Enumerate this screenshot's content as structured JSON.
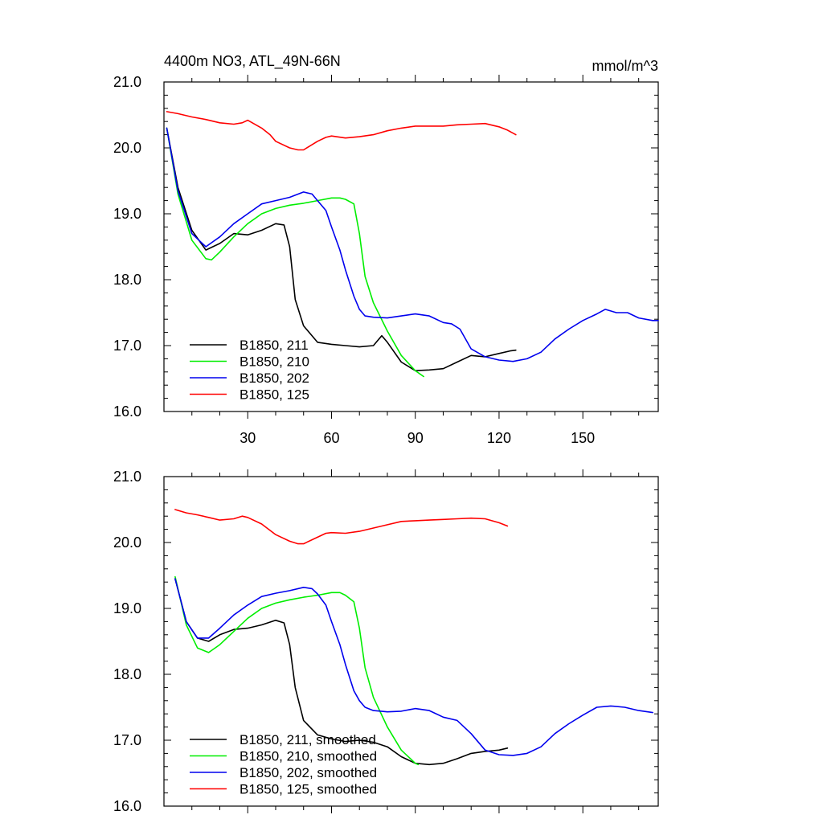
{
  "chart_data": [
    {
      "type": "line",
      "title": "4400m NO3, ATL_49N-66N",
      "units": "mmol/m^3",
      "xlabel": "",
      "ylabel": "",
      "xlim": [
        0,
        177
      ],
      "ylim": [
        16.0,
        21.0
      ],
      "yticks": [
        "16.0",
        "17.0",
        "18.0",
        "19.0",
        "20.0",
        "21.0"
      ],
      "xticks": [
        "30",
        "60",
        "90",
        "120",
        "150"
      ],
      "legend_position": "bottom-left",
      "series": [
        {
          "name": "B1850, 211",
          "color": "#000000",
          "x": [
            1,
            5,
            10,
            15,
            20,
            25,
            30,
            35,
            40,
            43,
            45,
            47,
            50,
            55,
            60,
            65,
            70,
            75,
            78,
            80,
            85,
            90,
            95,
            100,
            105,
            110,
            115,
            120,
            124,
            126
          ],
          "y": [
            20.3,
            19.4,
            18.75,
            18.45,
            18.55,
            18.7,
            18.68,
            18.75,
            18.85,
            18.83,
            18.5,
            17.7,
            17.3,
            17.05,
            17.02,
            17.0,
            16.98,
            17.0,
            17.15,
            17.05,
            16.75,
            16.62,
            16.63,
            16.65,
            16.75,
            16.85,
            16.83,
            16.88,
            16.92,
            16.93
          ]
        },
        {
          "name": "B1850, 210",
          "color": "#00ee00",
          "x": [
            1,
            5,
            10,
            15,
            17,
            20,
            25,
            30,
            35,
            40,
            45,
            50,
            55,
            60,
            63,
            65,
            68,
            70,
            72,
            75,
            80,
            85,
            90,
            93
          ],
          "y": [
            20.3,
            19.3,
            18.6,
            18.32,
            18.3,
            18.42,
            18.65,
            18.85,
            19.0,
            19.08,
            19.13,
            19.16,
            19.2,
            19.24,
            19.24,
            19.22,
            19.15,
            18.7,
            18.05,
            17.65,
            17.22,
            16.85,
            16.62,
            16.53
          ]
        },
        {
          "name": "B1850, 202",
          "color": "#0000ee",
          "x": [
            1,
            5,
            10,
            15,
            20,
            25,
            30,
            35,
            40,
            45,
            50,
            53,
            55,
            58,
            60,
            63,
            65,
            68,
            70,
            72,
            75,
            80,
            85,
            90,
            95,
            100,
            103,
            106,
            110,
            115,
            120,
            125,
            130,
            135,
            140,
            145,
            150,
            155,
            158,
            162,
            166,
            170,
            175,
            177
          ],
          "y": [
            20.3,
            19.35,
            18.7,
            18.5,
            18.65,
            18.85,
            19.0,
            19.15,
            19.2,
            19.25,
            19.33,
            19.3,
            19.2,
            19.05,
            18.8,
            18.45,
            18.15,
            17.75,
            17.55,
            17.45,
            17.43,
            17.42,
            17.45,
            17.48,
            17.45,
            17.35,
            17.33,
            17.25,
            16.95,
            16.83,
            16.78,
            16.76,
            16.8,
            16.9,
            17.1,
            17.25,
            17.38,
            17.48,
            17.55,
            17.5,
            17.5,
            17.42,
            17.38,
            17.38
          ]
        },
        {
          "name": "B1850, 125",
          "color": "#ff0000",
          "x": [
            1,
            5,
            10,
            15,
            20,
            25,
            28,
            30,
            35,
            38,
            40,
            45,
            48,
            50,
            55,
            58,
            60,
            65,
            70,
            75,
            80,
            85,
            90,
            95,
            100,
            105,
            110,
            115,
            120,
            123,
            126
          ],
          "y": [
            20.55,
            20.52,
            20.47,
            20.43,
            20.38,
            20.36,
            20.38,
            20.42,
            20.3,
            20.2,
            20.1,
            20.0,
            19.97,
            19.97,
            20.1,
            20.16,
            20.18,
            20.15,
            20.17,
            20.2,
            20.26,
            20.3,
            20.33,
            20.33,
            20.33,
            20.35,
            20.36,
            20.37,
            20.32,
            20.27,
            20.2
          ]
        }
      ]
    },
    {
      "type": "line",
      "title": "",
      "units": "",
      "xlabel": "",
      "ylabel": "",
      "xlim": [
        0,
        177
      ],
      "ylim": [
        16.0,
        21.0
      ],
      "yticks": [
        "16.0",
        "17.0",
        "18.0",
        "19.0",
        "20.0",
        "21.0"
      ],
      "xticks": [],
      "legend_position": "bottom-left",
      "series": [
        {
          "name": "B1850, 211, smoothed",
          "color": "#000000",
          "x": [
            4,
            8,
            12,
            16,
            20,
            25,
            30,
            35,
            40,
            43,
            45,
            47,
            50,
            55,
            60,
            65,
            70,
            75,
            80,
            85,
            90,
            95,
            100,
            105,
            110,
            115,
            120,
            123
          ],
          "y": [
            19.45,
            18.8,
            18.55,
            18.5,
            18.6,
            18.68,
            18.7,
            18.75,
            18.82,
            18.78,
            18.45,
            17.8,
            17.3,
            17.08,
            17.02,
            16.98,
            17.0,
            16.97,
            16.9,
            16.75,
            16.65,
            16.63,
            16.65,
            16.72,
            16.8,
            16.83,
            16.85,
            16.88
          ]
        },
        {
          "name": "B1850, 210, smoothed",
          "color": "#00ee00",
          "x": [
            4,
            8,
            12,
            16,
            20,
            25,
            30,
            35,
            40,
            45,
            50,
            55,
            60,
            63,
            65,
            68,
            70,
            72,
            75,
            80,
            85,
            90,
            91
          ],
          "y": [
            19.48,
            18.75,
            18.4,
            18.33,
            18.45,
            18.65,
            18.85,
            19.0,
            19.08,
            19.13,
            19.17,
            19.2,
            19.24,
            19.24,
            19.2,
            19.1,
            18.7,
            18.1,
            17.65,
            17.2,
            16.85,
            16.65,
            16.63
          ]
        },
        {
          "name": "B1850, 202, smoothed",
          "color": "#0000ee",
          "x": [
            4,
            8,
            12,
            16,
            20,
            25,
            30,
            35,
            40,
            45,
            50,
            53,
            55,
            58,
            60,
            63,
            65,
            68,
            70,
            72,
            75,
            80,
            85,
            90,
            95,
            100,
            105,
            110,
            115,
            120,
            125,
            130,
            135,
            140,
            145,
            150,
            155,
            160,
            165,
            170,
            175
          ],
          "y": [
            19.45,
            18.8,
            18.55,
            18.55,
            18.7,
            18.9,
            19.05,
            19.18,
            19.23,
            19.27,
            19.32,
            19.3,
            19.22,
            19.05,
            18.8,
            18.45,
            18.15,
            17.75,
            17.6,
            17.5,
            17.45,
            17.43,
            17.44,
            17.48,
            17.45,
            17.35,
            17.3,
            17.1,
            16.85,
            16.78,
            16.77,
            16.8,
            16.9,
            17.1,
            17.25,
            17.38,
            17.5,
            17.52,
            17.5,
            17.45,
            17.42
          ]
        },
        {
          "name": "B1850, 125, smoothed",
          "color": "#ff0000",
          "x": [
            4,
            8,
            12,
            16,
            20,
            25,
            28,
            30,
            35,
            40,
            45,
            48,
            50,
            55,
            58,
            60,
            65,
            70,
            75,
            80,
            85,
            90,
            95,
            100,
            105,
            110,
            115,
            120,
            123
          ],
          "y": [
            20.5,
            20.45,
            20.42,
            20.38,
            20.34,
            20.36,
            20.4,
            20.38,
            20.28,
            20.12,
            20.02,
            19.98,
            19.98,
            20.08,
            20.14,
            20.15,
            20.14,
            20.17,
            20.22,
            20.27,
            20.32,
            20.33,
            20.34,
            20.35,
            20.36,
            20.37,
            20.36,
            20.3,
            20.25
          ]
        }
      ]
    }
  ]
}
